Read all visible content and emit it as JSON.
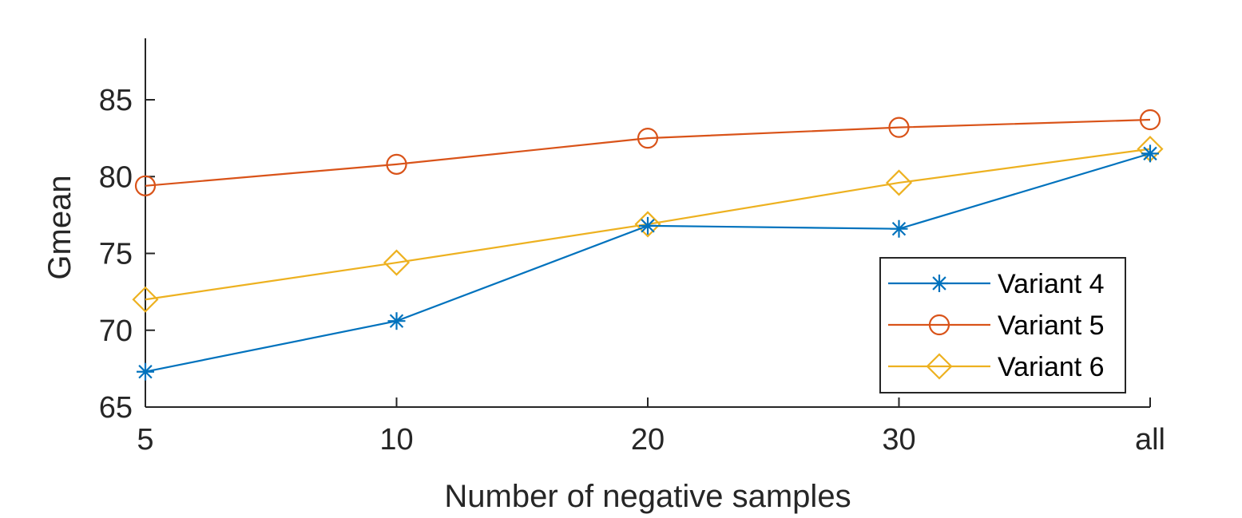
{
  "chart_data": {
    "type": "line",
    "title": "",
    "xlabel": "Number of negative samples",
    "ylabel": "Gmean",
    "categories": [
      "5",
      "10",
      "20",
      "30",
      "all"
    ],
    "ylim": [
      65,
      89
    ],
    "yticks": [
      65,
      70,
      75,
      80,
      85
    ],
    "grid": false,
    "legend_position": "bottom-right",
    "series": [
      {
        "name": "Variant 4",
        "marker": "asterisk",
        "color": "#0072BD",
        "values": [
          67.3,
          70.6,
          76.8,
          76.6,
          81.5
        ]
      },
      {
        "name": "Variant 5",
        "marker": "circle",
        "color": "#D95319",
        "values": [
          79.4,
          80.8,
          82.5,
          83.2,
          83.7
        ]
      },
      {
        "name": "Variant 6",
        "marker": "diamond",
        "color": "#EDB120",
        "values": [
          72.0,
          74.4,
          76.9,
          79.6,
          81.8
        ]
      }
    ]
  }
}
